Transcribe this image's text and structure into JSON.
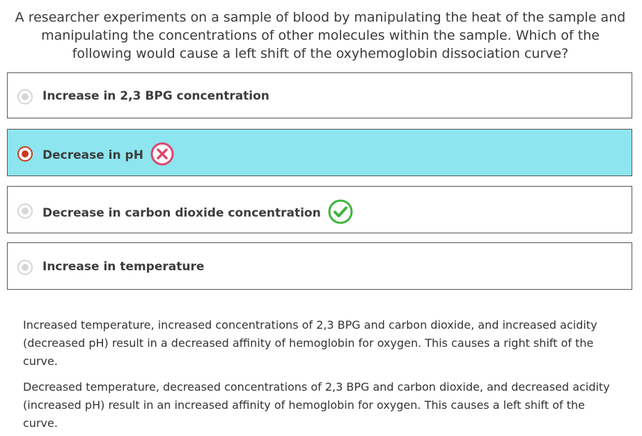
{
  "question": {
    "text": "A researcher experiments on a sample of blood by manipulating the heat of the sample and manipulating the concentrations of other molecules within the sample. Which of the following would cause a left shift of the oxyhemoglobin dissociation curve?"
  },
  "options": [
    {
      "label": "Increase in 2,3 BPG concentration",
      "selected": false,
      "result": null
    },
    {
      "label": "Decrease in pH",
      "selected": true,
      "result": "incorrect"
    },
    {
      "label": "Decrease in carbon dioxide concentration",
      "selected": false,
      "result": "correct"
    },
    {
      "label": "Increase in temperature",
      "selected": false,
      "result": null
    }
  ],
  "explanation": {
    "paragraphs": [
      "Increased temperature, increased concentrations of 2,3 BPG and carbon dioxide, and increased acidity (decreased pH) result in a decreased affinity of hemoglobin for oxygen. This causes a right shift of the curve.",
      "Decreased temperature, decreased concentrations of 2,3 BPG and carbon dioxide, and decreased acidity (increased pH) result in an increased affinity of hemoglobin for oxygen. This causes a left shift of the curve."
    ]
  },
  "colors": {
    "selected_background": "#8de6ef",
    "selected_radio": "#c9381e",
    "incorrect_icon": "#e0456b",
    "correct_icon": "#3cb43c"
  },
  "icons": {
    "incorrect": "x-circle-icon",
    "correct": "check-circle-icon"
  }
}
